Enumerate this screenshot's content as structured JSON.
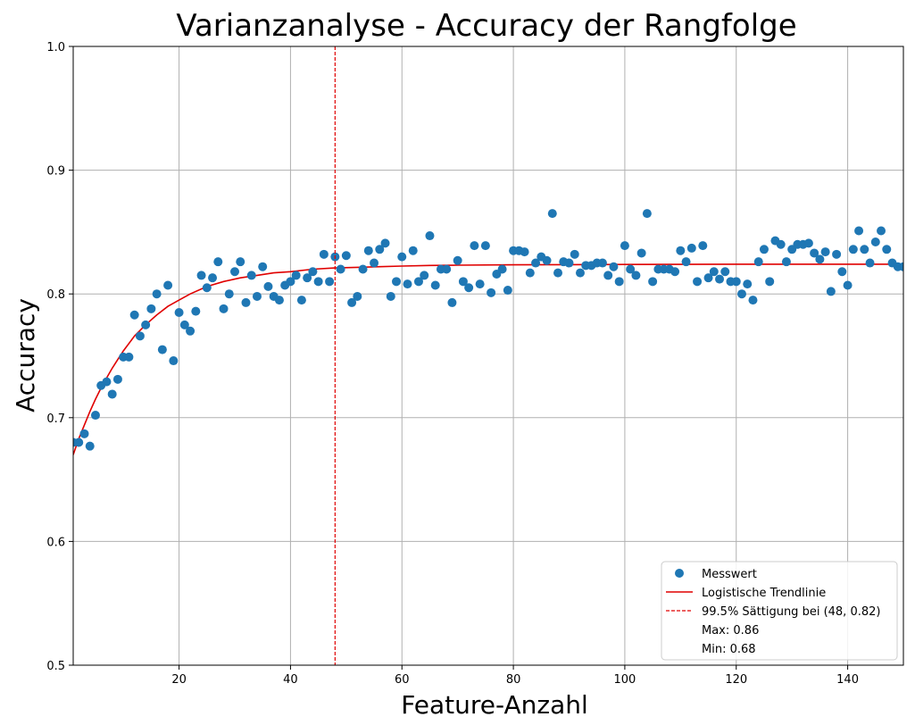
{
  "chart_data": {
    "type": "scatter",
    "title": "Varianzanalyse - Accuracy der Rangfolge",
    "xlabel": "Feature-Anzahl",
    "ylabel": "Accuracy",
    "xlim": [
      1,
      150
    ],
    "ylim": [
      0.5,
      1.0
    ],
    "grid": true,
    "legend_position": "bottom-right",
    "x_ticks": [
      20,
      40,
      60,
      80,
      100,
      120,
      140
    ],
    "x_tick_labels": [
      "20",
      "40",
      "60",
      "80",
      "100",
      "120",
      "140"
    ],
    "y_ticks": [
      0.5,
      0.6,
      0.7,
      0.8,
      0.9,
      1.0
    ],
    "y_tick_labels": [
      "0.5",
      "0.6",
      "0.7",
      "0.8",
      "0.9",
      "1.0"
    ],
    "colors": {
      "points": "#1f77b4",
      "trend": "#e00000",
      "saturation": "#e00000"
    },
    "series": [
      {
        "name": "Messwert",
        "kind": "scatter",
        "x": [
          1,
          2,
          3,
          4,
          5,
          6,
          7,
          8,
          9,
          10,
          11,
          12,
          13,
          14,
          15,
          16,
          17,
          18,
          19,
          20,
          21,
          22,
          23,
          24,
          25,
          26,
          27,
          28,
          29,
          30,
          31,
          32,
          33,
          34,
          35,
          36,
          37,
          38,
          39,
          40,
          41,
          42,
          43,
          44,
          45,
          46,
          47,
          48,
          49,
          50,
          51,
          52,
          53,
          54,
          55,
          56,
          57,
          58,
          59,
          60,
          61,
          62,
          63,
          64,
          65,
          66,
          67,
          68,
          69,
          70,
          71,
          72,
          73,
          74,
          75,
          76,
          77,
          78,
          79,
          80,
          81,
          82,
          83,
          84,
          85,
          86,
          87,
          88,
          89,
          90,
          91,
          92,
          93,
          94,
          95,
          96,
          97,
          98,
          99,
          100,
          101,
          102,
          103,
          104,
          105,
          106,
          107,
          108,
          109,
          110,
          111,
          112,
          113,
          114,
          115,
          116,
          117,
          118,
          119,
          120,
          121,
          122,
          123,
          124,
          125,
          126,
          127,
          128,
          129,
          130,
          131,
          132,
          133,
          134,
          135,
          136,
          137,
          138,
          139,
          140,
          141,
          142,
          143,
          144,
          145,
          146,
          147,
          148,
          149,
          150
        ],
        "y": [
          0.68,
          0.68,
          0.687,
          0.677,
          0.702,
          0.726,
          0.729,
          0.719,
          0.731,
          0.749,
          0.749,
          0.783,
          0.766,
          0.775,
          0.788,
          0.8,
          0.755,
          0.807,
          0.746,
          0.785,
          0.775,
          0.77,
          0.786,
          0.815,
          0.805,
          0.813,
          0.826,
          0.788,
          0.8,
          0.818,
          0.826,
          0.793,
          0.815,
          0.798,
          0.822,
          0.806,
          0.798,
          0.795,
          0.807,
          0.81,
          0.815,
          0.795,
          0.813,
          0.818,
          0.81,
          0.832,
          0.81,
          0.83,
          0.82,
          0.831,
          0.793,
          0.798,
          0.82,
          0.835,
          0.825,
          0.836,
          0.841,
          0.798,
          0.81,
          0.83,
          0.808,
          0.835,
          0.81,
          0.815,
          0.847,
          0.807,
          0.82,
          0.82,
          0.793,
          0.827,
          0.81,
          0.805,
          0.839,
          0.808,
          0.839,
          0.801,
          0.816,
          0.82,
          0.803,
          0.835,
          0.835,
          0.834,
          0.817,
          0.825,
          0.83,
          0.827,
          0.865,
          0.817,
          0.826,
          0.825,
          0.832,
          0.817,
          0.823,
          0.823,
          0.825,
          0.825,
          0.815,
          0.822,
          0.81,
          0.839,
          0.82,
          0.815,
          0.833,
          0.865,
          0.81,
          0.82,
          0.82,
          0.82,
          0.818,
          0.835,
          0.826,
          0.837,
          0.81,
          0.839,
          0.813,
          0.818,
          0.812,
          0.818,
          0.81,
          0.81,
          0.8,
          0.808,
          0.795,
          0.826,
          0.836,
          0.81,
          0.843,
          0.84,
          0.826,
          0.836,
          0.84,
          0.84,
          0.841,
          0.833,
          0.828,
          0.834,
          0.802,
          0.832,
          0.818,
          0.807,
          0.836,
          0.851,
          0.836,
          0.825,
          0.842,
          0.851,
          0.836,
          0.825,
          0.822,
          0.822
        ]
      },
      {
        "name": "Logistische Trendlinie",
        "kind": "line",
        "x": [
          1,
          2,
          3,
          4,
          5,
          6,
          7,
          8,
          9,
          10,
          12,
          14,
          16,
          18,
          20,
          22,
          25,
          28,
          31,
          34,
          37,
          40,
          44,
          48,
          52,
          56,
          60,
          65,
          70,
          80,
          90,
          100,
          110,
          120,
          130,
          140,
          150
        ],
        "y": [
          0.67,
          0.683,
          0.694,
          0.705,
          0.715,
          0.724,
          0.732,
          0.74,
          0.747,
          0.754,
          0.766,
          0.775,
          0.783,
          0.79,
          0.795,
          0.8,
          0.806,
          0.81,
          0.813,
          0.815,
          0.817,
          0.818,
          0.82,
          0.821,
          0.8215,
          0.822,
          0.8225,
          0.823,
          0.8232,
          0.8235,
          0.8237,
          0.8238,
          0.8239,
          0.824,
          0.824,
          0.824,
          0.824
        ]
      },
      {
        "name": "99.5% Sättigung bei (48, 0.82)",
        "kind": "vline",
        "x": 48
      }
    ],
    "legend": [
      {
        "label": "Messwert",
        "marker": "circle"
      },
      {
        "label": "Logistische Trendlinie",
        "marker": "line"
      },
      {
        "label": "99.5% Sättigung bei (48, 0.82)",
        "marker": "dashed"
      },
      {
        "label": "Max: 0.86",
        "marker": "none"
      },
      {
        "label": "Min: 0.68",
        "marker": "none"
      }
    ]
  }
}
